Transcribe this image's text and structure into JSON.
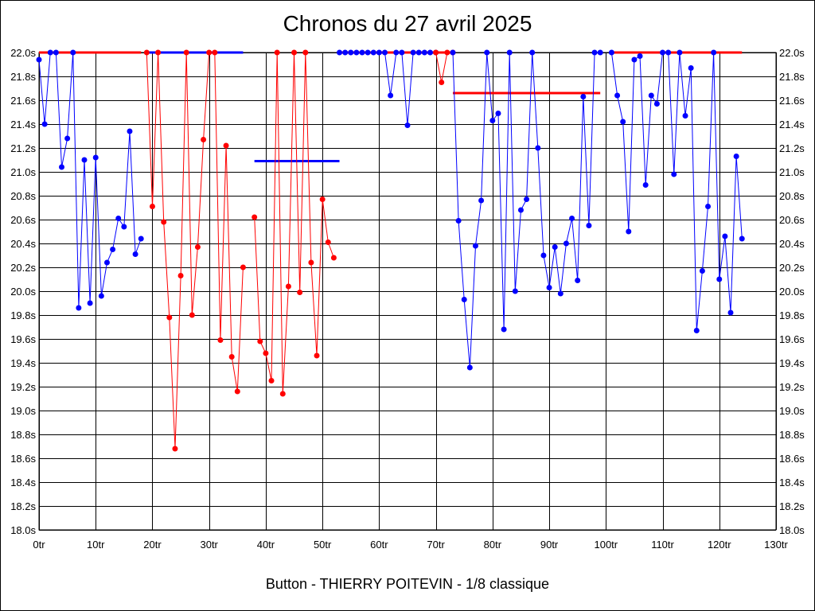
{
  "chart_data": {
    "type": "line",
    "title": "Chronos du 27 avril 2025",
    "subtitle": "Button - THIERRY POITEVIN - 1/8 classique",
    "xlabel": "",
    "ylabel": "",
    "xlim": [
      0,
      130
    ],
    "ylim": [
      18.0,
      22.0
    ],
    "x_ticks": [
      0,
      10,
      20,
      30,
      40,
      50,
      60,
      70,
      80,
      90,
      100,
      110,
      120,
      130
    ],
    "x_tick_labels": [
      "0tr",
      "10tr",
      "20tr",
      "30tr",
      "40tr",
      "50tr",
      "60tr",
      "70tr",
      "80tr",
      "90tr",
      "100tr",
      "110tr",
      "120tr",
      "130tr"
    ],
    "y_ticks": [
      18.0,
      18.2,
      18.4,
      18.6,
      18.8,
      19.0,
      19.2,
      19.4,
      19.6,
      19.8,
      20.0,
      20.2,
      20.4,
      20.6,
      20.8,
      21.0,
      21.2,
      21.4,
      21.6,
      21.8,
      22.0
    ],
    "y_tick_labels": [
      "18.0s",
      "18.2s",
      "18.4s",
      "18.6s",
      "18.8s",
      "19.0s",
      "19.2s",
      "19.4s",
      "19.6s",
      "19.8s",
      "20.0s",
      "20.2s",
      "20.4s",
      "20.6s",
      "20.8s",
      "21.0s",
      "21.2s",
      "21.4s",
      "21.6s",
      "21.8s",
      "22.0s"
    ],
    "grid": true,
    "colors": {
      "blue": "#0000ff",
      "red": "#ff0000"
    },
    "series": [
      {
        "color": "#0000ff",
        "points": [
          [
            0,
            21.94
          ],
          [
            1,
            21.4
          ],
          [
            2,
            22.0
          ],
          [
            3,
            22.0
          ],
          [
            4,
            21.04
          ],
          [
            5,
            21.28
          ],
          [
            6,
            22.0
          ],
          [
            7,
            19.86
          ],
          [
            8,
            21.1
          ],
          [
            9,
            19.9
          ],
          [
            10,
            21.12
          ],
          [
            11,
            19.96
          ],
          [
            12,
            20.24
          ],
          [
            13,
            20.35
          ],
          [
            14,
            20.61
          ],
          [
            15,
            20.54
          ],
          [
            16,
            21.34
          ],
          [
            17,
            20.31
          ],
          [
            18,
            20.44
          ]
        ]
      },
      {
        "color": "#ff0000",
        "points": [
          [
            19,
            22.0
          ],
          [
            20,
            20.71
          ],
          [
            21,
            22.0
          ],
          [
            22,
            20.58
          ],
          [
            23,
            19.78
          ],
          [
            24,
            18.68
          ],
          [
            25,
            20.13
          ],
          [
            26,
            22.0
          ],
          [
            27,
            19.8
          ],
          [
            28,
            20.37
          ],
          [
            29,
            21.27
          ],
          [
            30,
            22.0
          ],
          [
            31,
            22.0
          ],
          [
            32,
            19.59
          ],
          [
            33,
            21.22
          ],
          [
            34,
            19.45
          ],
          [
            35,
            19.16
          ],
          [
            36,
            20.2
          ]
        ]
      },
      {
        "color": "#ff0000",
        "points": [
          [
            38,
            20.62
          ],
          [
            39,
            19.58
          ],
          [
            40,
            19.48
          ],
          [
            41,
            19.25
          ],
          [
            42,
            22.0
          ],
          [
            43,
            19.14
          ],
          [
            44,
            20.04
          ],
          [
            45,
            22.0
          ],
          [
            46,
            19.99
          ],
          [
            47,
            22.0
          ],
          [
            48,
            20.24
          ],
          [
            49,
            19.46
          ],
          [
            50,
            20.77
          ],
          [
            51,
            20.41
          ],
          [
            52,
            20.28
          ]
        ]
      },
      {
        "color": "#0000ff",
        "points": [
          [
            53,
            22.0
          ],
          [
            54,
            22.0
          ],
          [
            55,
            22.0
          ],
          [
            56,
            22.0
          ],
          [
            57,
            22.0
          ],
          [
            58,
            22.0
          ],
          [
            59,
            22.0
          ],
          [
            60,
            22.0
          ],
          [
            61,
            22.0
          ],
          [
            62,
            21.64
          ],
          [
            63,
            22.0
          ],
          [
            64,
            22.0
          ],
          [
            65,
            21.39
          ],
          [
            66,
            22.0
          ],
          [
            67,
            22.0
          ],
          [
            68,
            22.0
          ],
          [
            69,
            22.0
          ],
          [
            70,
            22.0
          ]
        ]
      },
      {
        "color": "#ff0000",
        "points": [
          [
            70,
            22.0
          ],
          [
            71,
            21.75
          ],
          [
            72,
            22.0
          ],
          [
            73,
            22.0
          ]
        ]
      },
      {
        "color": "#0000ff",
        "points": [
          [
            73,
            22.0
          ],
          [
            74,
            20.59
          ],
          [
            75,
            19.93
          ],
          [
            76,
            19.36
          ],
          [
            77,
            20.38
          ],
          [
            78,
            20.76
          ],
          [
            79,
            22.0
          ],
          [
            80,
            21.43
          ],
          [
            81,
            21.49
          ],
          [
            82,
            19.68
          ],
          [
            83,
            22.0
          ],
          [
            84,
            20.0
          ],
          [
            85,
            20.68
          ],
          [
            86,
            20.77
          ],
          [
            87,
            22.0
          ],
          [
            88,
            21.2
          ],
          [
            89,
            20.3
          ],
          [
            90,
            20.03
          ],
          [
            91,
            20.37
          ],
          [
            92,
            19.98
          ],
          [
            93,
            20.4
          ],
          [
            94,
            20.61
          ],
          [
            95,
            20.09
          ],
          [
            96,
            21.63
          ],
          [
            97,
            20.55
          ],
          [
            98,
            22.0
          ],
          [
            99,
            22.0
          ]
        ]
      },
      {
        "color": "#0000ff",
        "points": [
          [
            101,
            22.0
          ],
          [
            102,
            21.64
          ],
          [
            103,
            21.42
          ],
          [
            104,
            20.5
          ],
          [
            105,
            21.94
          ],
          [
            106,
            21.97
          ],
          [
            107,
            20.89
          ],
          [
            108,
            21.64
          ],
          [
            109,
            21.57
          ],
          [
            110,
            22.0
          ],
          [
            111,
            22.0
          ],
          [
            112,
            20.98
          ],
          [
            113,
            22.0
          ],
          [
            114,
            21.47
          ],
          [
            115,
            21.87
          ],
          [
            116,
            19.67
          ],
          [
            117,
            20.17
          ],
          [
            118,
            20.71
          ],
          [
            119,
            22.0
          ],
          [
            120,
            20.1
          ],
          [
            121,
            20.46
          ],
          [
            122,
            19.82
          ],
          [
            123,
            21.13
          ],
          [
            124,
            20.44
          ]
        ]
      }
    ],
    "reference_lines": [
      {
        "color": "#ff0000",
        "x": [
          0,
          18
        ],
        "y": 22.0
      },
      {
        "color": "#0000ff",
        "x": [
          19,
          36
        ],
        "y": 22.0
      },
      {
        "color": "#0000ff",
        "x": [
          38,
          53
        ],
        "y": 21.09
      },
      {
        "color": "#ff0000",
        "x": [
          53,
          73
        ],
        "y": 22.0
      },
      {
        "color": "#ff0000",
        "x": [
          73,
          99
        ],
        "y": 21.66
      },
      {
        "color": "#ff0000",
        "x": [
          101,
          124
        ],
        "y": 22.0
      }
    ]
  }
}
